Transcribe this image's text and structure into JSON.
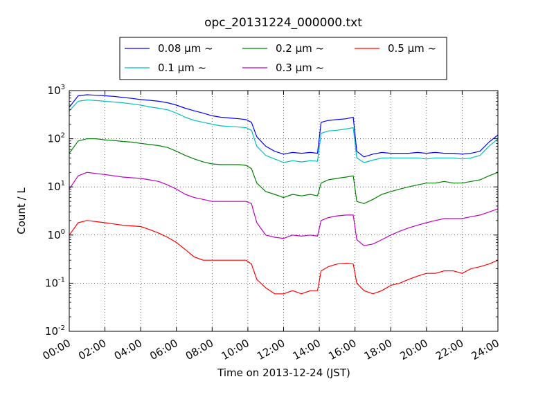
{
  "chart_data": {
    "type": "line",
    "title": "opc_20131224_000000.txt",
    "xlabel": "Time on 2013-12-24 (JST)",
    "ylabel": "Count / L",
    "yscale": "log",
    "xlim": [
      0,
      24
    ],
    "ylim": [
      0.01,
      1000
    ],
    "grid": true,
    "legend_placement": "top-center",
    "x_ticks": [
      0,
      2,
      4,
      6,
      8,
      10,
      12,
      14,
      16,
      18,
      20,
      22,
      24
    ],
    "x_tick_labels": [
      "00:00",
      "02:00",
      "04:00",
      "06:00",
      "08:00",
      "10:00",
      "12:00",
      "14:00",
      "16:00",
      "18:00",
      "20:00",
      "22:00",
      "24:00"
    ],
    "y_tick_values": [
      0.01,
      0.1,
      1,
      10,
      100,
      1000
    ],
    "y_tick_mantissa": [
      "10",
      "10",
      "10",
      "10",
      "10",
      "10"
    ],
    "y_tick_exponents": [
      "-2",
      "-1",
      "0",
      "1",
      "2",
      "3"
    ],
    "x": [
      0,
      0.5,
      1,
      1.5,
      2,
      2.5,
      3,
      3.5,
      4,
      4.5,
      5,
      5.5,
      6,
      6.5,
      7,
      7.5,
      8,
      8.5,
      9,
      9.5,
      9.9,
      10.2,
      10.5,
      11,
      11.5,
      12,
      12.5,
      13,
      13.5,
      13.9,
      14.1,
      14.5,
      15,
      15.5,
      15.9,
      16.1,
      16.5,
      17,
      17.5,
      18,
      18.5,
      19,
      19.5,
      20,
      20.5,
      21,
      21.5,
      22,
      22.5,
      23,
      23.5,
      24
    ],
    "series": [
      {
        "name": "0.08 μm ~",
        "color": "#0000ff",
        "values": [
          450,
          780,
          820,
          800,
          780,
          760,
          720,
          690,
          650,
          630,
          600,
          560,
          500,
          430,
          380,
          340,
          300,
          280,
          270,
          260,
          250,
          220,
          110,
          70,
          55,
          48,
          52,
          50,
          52,
          50,
          220,
          240,
          250,
          260,
          280,
          55,
          42,
          48,
          52,
          50,
          50,
          50,
          52,
          50,
          52,
          50,
          50,
          48,
          50,
          55,
          85,
          120
        ]
      },
      {
        "name": "0.1 μm ~",
        "color": "#00bfbf",
        "values": [
          380,
          600,
          640,
          620,
          600,
          580,
          560,
          530,
          500,
          460,
          430,
          400,
          340,
          280,
          240,
          220,
          200,
          185,
          180,
          175,
          170,
          150,
          70,
          45,
          38,
          32,
          35,
          33,
          35,
          34,
          130,
          145,
          150,
          160,
          170,
          40,
          32,
          36,
          40,
          40,
          40,
          40,
          40,
          38,
          40,
          40,
          40,
          38,
          40,
          45,
          70,
          100
        ]
      },
      {
        "name": "0.2 μm ~",
        "color": "#008000",
        "values": [
          50,
          90,
          100,
          100,
          95,
          92,
          88,
          85,
          80,
          76,
          72,
          66,
          55,
          45,
          38,
          33,
          30,
          29,
          29,
          29,
          28,
          24,
          12,
          8,
          7,
          6,
          7,
          6.5,
          7,
          6.5,
          12,
          14,
          15,
          16,
          17,
          5,
          4.5,
          5.5,
          7,
          8,
          9,
          10,
          11,
          12,
          12,
          13,
          12,
          12,
          13,
          14,
          17,
          20
        ]
      },
      {
        "name": "0.3 μm ~",
        "color": "#bf00bf",
        "values": [
          9,
          17,
          20,
          19,
          18,
          17,
          16,
          15.5,
          15,
          14,
          13,
          11,
          9,
          7,
          6,
          5.5,
          5,
          5,
          5,
          5,
          5,
          4.5,
          1.8,
          1.0,
          0.9,
          0.85,
          1.0,
          0.95,
          1.0,
          0.95,
          2.0,
          2.3,
          2.5,
          2.6,
          2.6,
          0.8,
          0.6,
          0.65,
          0.8,
          1.0,
          1.2,
          1.4,
          1.6,
          1.8,
          2.0,
          2.2,
          2.2,
          2.2,
          2.4,
          2.6,
          3.0,
          3.5
        ]
      },
      {
        "name": "0.5 μm ~",
        "color": "#ff0000",
        "values": [
          1.0,
          1.8,
          2.0,
          1.9,
          1.8,
          1.7,
          1.6,
          1.55,
          1.5,
          1.3,
          1.1,
          0.9,
          0.7,
          0.5,
          0.35,
          0.3,
          0.3,
          0.3,
          0.3,
          0.3,
          0.3,
          0.25,
          0.12,
          0.08,
          0.06,
          0.06,
          0.07,
          0.06,
          0.07,
          0.07,
          0.18,
          0.22,
          0.25,
          0.26,
          0.25,
          0.1,
          0.07,
          0.06,
          0.07,
          0.09,
          0.1,
          0.12,
          0.14,
          0.16,
          0.16,
          0.18,
          0.18,
          0.16,
          0.2,
          0.22,
          0.25,
          0.3
        ]
      }
    ]
  }
}
